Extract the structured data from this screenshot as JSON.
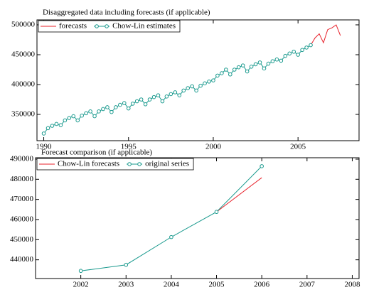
{
  "chart_data": [
    {
      "type": "line",
      "title": "Disaggregated data including forecasts (if applicable)",
      "xlim": [
        1989.6,
        2008.6
      ],
      "xticks": [
        1990,
        1995,
        2000,
        2005
      ],
      "ylim": [
        306000,
        508300
      ],
      "yticks": [
        350000,
        400000,
        450000,
        500000
      ],
      "legend": "upper left",
      "series": [
        {
          "name": "forecasts",
          "color": "#e8202a",
          "marker": false,
          "x": [
            2005.75,
            2006,
            2006.25,
            2006.5,
            2006.75,
            2007,
            2007.25,
            2007.5
          ],
          "values": [
            466000,
            478000,
            485000,
            470000,
            492000,
            495000,
            500000,
            482000
          ]
        },
        {
          "name": "Chow-Lin estimates",
          "color": "#1a9a8e",
          "marker": true,
          "x": [
            1990,
            1990.25,
            1990.5,
            1990.75,
            1991,
            1991.25,
            1991.5,
            1991.75,
            1992,
            1992.25,
            1992.5,
            1992.75,
            1993,
            1993.25,
            1993.5,
            1993.75,
            1994,
            1994.25,
            1994.5,
            1994.75,
            1995,
            1995.25,
            1995.5,
            1995.75,
            1996,
            1996.25,
            1996.5,
            1996.75,
            1997,
            1997.25,
            1997.5,
            1997.75,
            1998,
            1998.25,
            1998.5,
            1998.75,
            1999,
            1999.25,
            1999.5,
            1999.75,
            2000,
            2000.25,
            2000.5,
            2000.75,
            2001,
            2001.25,
            2001.5,
            2001.75,
            2002,
            2002.25,
            2002.5,
            2002.75,
            2003,
            2003.25,
            2003.5,
            2003.75,
            2004,
            2004.25,
            2004.5,
            2004.75,
            2005,
            2005.25,
            2005.5,
            2005.75
          ],
          "values": [
            318000,
            327000,
            331000,
            334000,
            332000,
            340000,
            344000,
            347000,
            340000,
            348000,
            352000,
            355000,
            347000,
            355000,
            359000,
            362000,
            354000,
            362000,
            366000,
            369000,
            360000,
            368000,
            372000,
            375000,
            367000,
            375000,
            379000,
            382000,
            372000,
            380000,
            384000,
            387000,
            382000,
            390000,
            394000,
            397000,
            390000,
            398000,
            402000,
            405000,
            407000,
            415000,
            419000,
            425000,
            417000,
            425000,
            429000,
            432000,
            422000,
            430000,
            434000,
            437000,
            427000,
            435000,
            439000,
            442000,
            440000,
            448000,
            452000,
            455000,
            450000,
            458000,
            462000,
            466000
          ]
        }
      ]
    },
    {
      "type": "line",
      "title": "Forecast comparison (if applicable)",
      "xlim": [
        2001,
        2008.15
      ],
      "xticks": [
        2002,
        2003,
        2004,
        2005,
        2006,
        2007,
        2008
      ],
      "ylim": [
        430700,
        490700
      ],
      "yticks": [
        440000,
        450000,
        460000,
        470000,
        480000,
        490000
      ],
      "legend": "upper left",
      "series": [
        {
          "name": "Chow-Lin forecasts",
          "color": "#e8202a",
          "marker": false,
          "x": [
            2005,
            2006
          ],
          "values": [
            463800,
            480800
          ]
        },
        {
          "name": "original series",
          "color": "#1a9a8e",
          "marker": true,
          "x": [
            2002,
            2003,
            2004,
            2005,
            2006
          ],
          "values": [
            434500,
            437500,
            451300,
            463800,
            486500
          ]
        }
      ]
    }
  ]
}
